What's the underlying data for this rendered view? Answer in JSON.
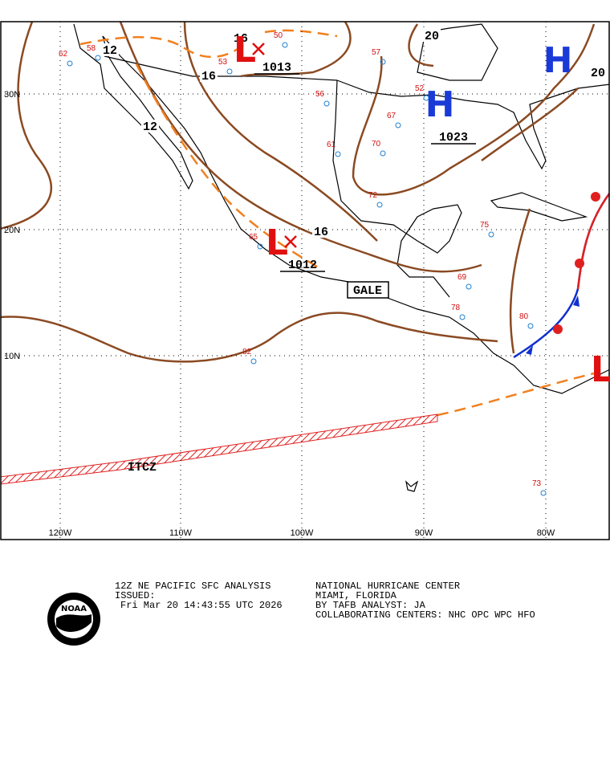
{
  "map": {
    "lat_labels": [
      "30N",
      "20N",
      "10N"
    ],
    "lon_labels": [
      "120W",
      "110W",
      "100W",
      "90W",
      "80W"
    ],
    "isobar_labels": [
      "12",
      "12",
      "16",
      "16",
      "16",
      "20",
      "20"
    ],
    "centers": [
      {
        "symbol": "L",
        "pressure": "1013"
      },
      {
        "symbol": "H",
        "pressure": "1023"
      },
      {
        "symbol": "L",
        "pressure": "1012"
      },
      {
        "symbol": "H"
      },
      {
        "symbol": "L"
      }
    ],
    "warning": "GALE",
    "feature": "ITCZ",
    "stations": [
      "62",
      "58",
      "53",
      "50",
      "57",
      "56",
      "67",
      "52",
      "61",
      "70",
      "72",
      "65",
      "82",
      "69",
      "75",
      "78",
      "80",
      "73"
    ]
  },
  "footer": {
    "left": [
      "12Z NE PACIFIC SFC ANALYSIS",
      "ISSUED:",
      "Fri Mar 20 14:43:55 UTC 2026"
    ],
    "right": [
      "NATIONAL HURRICANE CENTER",
      "MIAMI, FLORIDA",
      "BY TAFB ANALYST: JA",
      "COLLABORATING CENTERS: NHC OPC WPC HFO"
    ],
    "logo": "NOAA"
  }
}
